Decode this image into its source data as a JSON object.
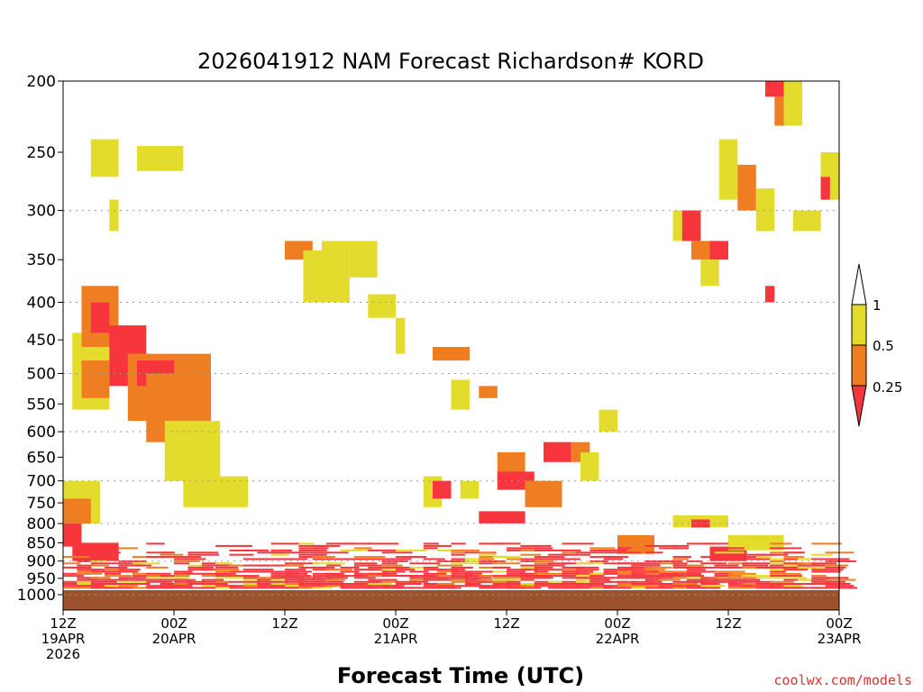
{
  "chart_data": {
    "type": "heatmap",
    "title": "2026041912 NAM Forecast Richardson# KORD",
    "xlabel": "Forecast Time (UTC)",
    "ylabel": "",
    "y_axis": {
      "scale": "log-pressure",
      "range": [
        200,
        1000
      ],
      "ticks": [
        {
          "value": 200,
          "label": "200"
        },
        {
          "value": 250,
          "label": "250"
        },
        {
          "value": 300,
          "label": "300"
        },
        {
          "value": 350,
          "label": "350"
        },
        {
          "value": 400,
          "label": "400"
        },
        {
          "value": 450,
          "label": "450"
        },
        {
          "value": 500,
          "label": "500"
        },
        {
          "value": 550,
          "label": "550"
        },
        {
          "value": 600,
          "label": "600"
        },
        {
          "value": 650,
          "label": "650"
        },
        {
          "value": 700,
          "label": "700"
        },
        {
          "value": 750,
          "label": "750"
        },
        {
          "value": 800,
          "label": "800"
        },
        {
          "value": 850,
          "label": "850"
        },
        {
          "value": 900,
          "label": "900"
        },
        {
          "value": 950,
          "label": "950"
        },
        {
          "value": 1000,
          "label": "1000"
        }
      ],
      "gridlines": [
        300,
        400,
        500,
        600,
        700,
        800,
        900,
        1000
      ]
    },
    "x_axis": {
      "range": [
        0,
        84
      ],
      "unit": "forecast hour",
      "ticks": [
        {
          "hour": 0,
          "lines": [
            "12Z",
            "19APR",
            "2026"
          ]
        },
        {
          "hour": 12,
          "lines": [
            "00Z",
            "20APR"
          ]
        },
        {
          "hour": 24,
          "lines": [
            "12Z"
          ]
        },
        {
          "hour": 36,
          "lines": [
            "00Z",
            "21APR"
          ]
        },
        {
          "hour": 48,
          "lines": [
            "12Z"
          ]
        },
        {
          "hour": 60,
          "lines": [
            "00Z",
            "22APR"
          ]
        },
        {
          "hour": 72,
          "lines": [
            "12Z"
          ]
        },
        {
          "hour": 84,
          "lines": [
            "00Z",
            "23APR"
          ]
        }
      ]
    },
    "legend": {
      "placement": "right",
      "entries": [
        {
          "label": "1",
          "range": "> 1"
        },
        {
          "label": "0.5",
          "range": "0.5 - 1",
          "color": "#e4dc2c"
        },
        {
          "label": "0.25",
          "range": "0.25 - 0.5",
          "color": "#ef7d22"
        },
        {
          "label": "",
          "range": "< 0.25",
          "color": "#f7353c"
        }
      ]
    },
    "colors": {
      "ri_0_25": "#f7353c",
      "ri_0_25_0_5": "#ef7d22",
      "ri_0_5_1": "#e4dc2c",
      "ground": "#9b522d"
    },
    "ground_level_hpa": 986,
    "cells_note": "approximate regions [hour_start, hour_end, pressure_top, pressure_bottom, class]",
    "regions": [
      [
        0,
        4,
        700,
        800,
        "y"
      ],
      [
        0,
        3,
        740,
        800,
        "o"
      ],
      [
        0,
        2,
        800,
        860,
        "r"
      ],
      [
        1,
        6,
        850,
        900,
        "r"
      ],
      [
        1,
        5,
        440,
        560,
        "y"
      ],
      [
        2,
        6,
        380,
        460,
        "o"
      ],
      [
        2,
        5,
        480,
        540,
        "o"
      ],
      [
        3,
        5,
        400,
        440,
        "r"
      ],
      [
        5,
        9,
        430,
        520,
        "r"
      ],
      [
        7,
        12,
        470,
        580,
        "o"
      ],
      [
        8,
        12,
        480,
        520,
        "r"
      ],
      [
        9,
        16,
        500,
        620,
        "o"
      ],
      [
        12,
        16,
        470,
        530,
        "o"
      ],
      [
        11,
        17,
        580,
        700,
        "y"
      ],
      [
        13,
        20,
        690,
        760,
        "y"
      ],
      [
        3,
        6,
        240,
        270,
        "y"
      ],
      [
        8,
        13,
        245,
        265,
        "y"
      ],
      [
        5,
        6,
        290,
        320,
        "y"
      ],
      [
        24,
        27,
        330,
        350,
        "o"
      ],
      [
        26,
        28,
        340,
        400,
        "y"
      ],
      [
        28,
        31,
        330,
        400,
        "y"
      ],
      [
        31,
        34,
        330,
        370,
        "y"
      ],
      [
        33,
        36,
        390,
        420,
        "y"
      ],
      [
        36,
        37,
        420,
        470,
        "y"
      ],
      [
        40,
        44,
        460,
        480,
        "o"
      ],
      [
        42,
        44,
        510,
        560,
        "y"
      ],
      [
        45,
        47,
        520,
        540,
        "o"
      ],
      [
        39,
        41,
        690,
        760,
        "y"
      ],
      [
        40,
        42,
        700,
        740,
        "r"
      ],
      [
        43,
        45,
        700,
        740,
        "y"
      ],
      [
        47,
        50,
        640,
        700,
        "o"
      ],
      [
        47,
        51,
        680,
        720,
        "r"
      ],
      [
        50,
        54,
        700,
        760,
        "o"
      ],
      [
        52,
        55,
        620,
        660,
        "r"
      ],
      [
        55,
        57,
        620,
        660,
        "o"
      ],
      [
        56,
        58,
        640,
        700,
        "y"
      ],
      [
        45,
        50,
        770,
        800,
        "r"
      ],
      [
        58,
        60,
        560,
        600,
        "y"
      ],
      [
        66,
        69,
        300,
        330,
        "y"
      ],
      [
        67,
        69,
        300,
        330,
        "r"
      ],
      [
        68,
        71,
        330,
        350,
        "o"
      ],
      [
        70,
        72,
        330,
        350,
        "r"
      ],
      [
        69,
        71,
        350,
        380,
        "y"
      ],
      [
        71,
        73,
        240,
        290,
        "y"
      ],
      [
        73,
        75,
        260,
        300,
        "o"
      ],
      [
        75,
        77,
        280,
        320,
        "y"
      ],
      [
        77,
        79,
        210,
        230,
        "o"
      ],
      [
        76,
        78,
        200,
        210,
        "r"
      ],
      [
        78,
        80,
        200,
        230,
        "y"
      ],
      [
        79,
        82,
        300,
        320,
        "y"
      ],
      [
        82,
        84,
        250,
        290,
        "y"
      ],
      [
        82,
        83,
        270,
        290,
        "r"
      ],
      [
        76,
        77,
        380,
        400,
        "r"
      ],
      [
        70,
        74,
        860,
        900,
        "r"
      ],
      [
        66,
        72,
        780,
        810,
        "y"
      ],
      [
        68,
        70,
        790,
        810,
        "r"
      ],
      [
        60,
        64,
        830,
        880,
        "o"
      ],
      [
        72,
        78,
        830,
        870,
        "y"
      ]
    ],
    "lower_layer_note": "dense striped red/orange low-level band from ~850 hPa to the surface across the full period"
  },
  "credit": "coolwx.com/models"
}
